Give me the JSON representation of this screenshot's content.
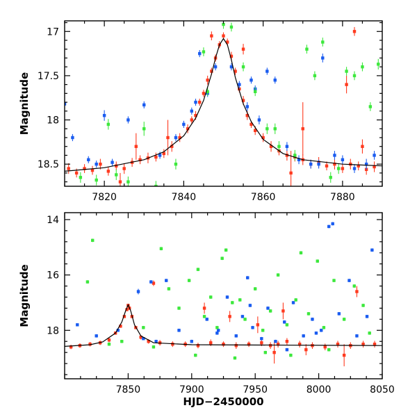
{
  "chart_data": [
    {
      "type": "scatter",
      "panel": "top",
      "title": "",
      "xlabel": "",
      "ylabel": "Magnitude",
      "xlim": [
        7810,
        7890
      ],
      "ylim": [
        18.75,
        16.88
      ],
      "y_inverted": true,
      "xticks": [
        7820,
        7840,
        7860,
        7880
      ],
      "xtick_labels": [
        "7820",
        "7840",
        "7860",
        "7880"
      ],
      "yticks": [
        17,
        17.5,
        18,
        18.5
      ],
      "ytick_labels": [
        "17",
        "17.5",
        "18",
        "18.5"
      ],
      "grid": false,
      "legend": "none",
      "model_curve": {
        "color": "#000000",
        "x": [
          7810,
          7820,
          7830,
          7835,
          7840,
          7843,
          7845,
          7847,
          7848,
          7849,
          7850,
          7851,
          7852,
          7853,
          7855,
          7857,
          7860,
          7865,
          7870,
          7880,
          7890
        ],
        "y": [
          18.58,
          18.54,
          18.45,
          18.36,
          18.18,
          17.98,
          17.78,
          17.48,
          17.3,
          17.15,
          17.08,
          17.15,
          17.32,
          17.52,
          17.82,
          18.02,
          18.22,
          18.38,
          18.45,
          18.5,
          18.52
        ]
      },
      "series": [
        {
          "color": "#ff3a1f",
          "x": [
            7811,
            7813,
            7815,
            7817,
            7819,
            7821,
            7823,
            7825,
            7827,
            7829,
            7831,
            7833,
            7835,
            7837,
            7839,
            7841,
            7842,
            7843,
            7844,
            7845,
            7846,
            7847,
            7848,
            7849,
            7850,
            7851,
            7852,
            7853,
            7854,
            7855,
            7856,
            7857,
            7858,
            7860,
            7862,
            7864,
            7866,
            7868,
            7870,
            7872,
            7874,
            7876,
            7878,
            7880,
            7882,
            7884,
            7886,
            7888,
            7836,
            7847,
            7855,
            7867,
            7881,
            7883,
            7885,
            7828,
            7824,
            7870
          ],
          "y": [
            18.55,
            18.6,
            18.55,
            18.57,
            18.5,
            18.58,
            18.52,
            18.55,
            18.48,
            18.45,
            18.43,
            18.42,
            18.38,
            18.3,
            18.2,
            18.1,
            18.0,
            17.95,
            17.8,
            17.7,
            17.55,
            17.45,
            17.3,
            17.15,
            17.05,
            17.12,
            17.28,
            17.45,
            17.65,
            17.78,
            17.95,
            18.05,
            18.12,
            18.2,
            18.3,
            18.35,
            18.4,
            18.42,
            18.45,
            18.5,
            18.48,
            18.52,
            18.5,
            18.55,
            18.5,
            18.52,
            18.56,
            18.53,
            18.2,
            17.05,
            17.2,
            18.6,
            17.6,
            17.0,
            18.3,
            18.3,
            18.7,
            18.1
          ],
          "err": [
            0.06,
            0.05,
            0.05,
            0.05,
            0.06,
            0.05,
            0.05,
            0.06,
            0.05,
            0.05,
            0.06,
            0.05,
            0.05,
            0.06,
            0.05,
            0.05,
            0.04,
            0.05,
            0.04,
            0.04,
            0.05,
            0.04,
            0.04,
            0.04,
            0.04,
            0.04,
            0.05,
            0.04,
            0.04,
            0.05,
            0.05,
            0.04,
            0.05,
            0.05,
            0.06,
            0.05,
            0.06,
            0.05,
            0.06,
            0.05,
            0.06,
            0.05,
            0.06,
            0.05,
            0.06,
            0.05,
            0.06,
            0.06,
            0.2,
            0.05,
            0.06,
            0.25,
            0.1,
            0.05,
            0.08,
            0.15,
            0.1,
            0.3
          ]
        },
        {
          "color": "#1a5cf0",
          "x": [
            7810,
            7812,
            7816,
            7818,
            7820,
            7822,
            7826,
            7830,
            7834,
            7838,
            7840,
            7842,
            7844,
            7846,
            7848,
            7852,
            7854,
            7856,
            7858,
            7859,
            7861,
            7863,
            7866,
            7869,
            7872,
            7875,
            7878,
            7880,
            7883,
            7886,
            7888,
            7843,
            7857,
            7874
          ],
          "y": [
            17.82,
            18.2,
            18.45,
            18.5,
            17.95,
            18.48,
            18.0,
            17.83,
            18.4,
            18.2,
            18.05,
            17.9,
            17.25,
            17.7,
            17.4,
            17.4,
            17.6,
            17.85,
            17.65,
            18.0,
            17.45,
            17.55,
            18.3,
            18.45,
            18.5,
            17.3,
            18.4,
            18.45,
            18.55,
            18.5,
            18.4,
            17.8,
            17.55,
            18.5
          ],
          "err": [
            0.05,
            0.04,
            0.04,
            0.04,
            0.06,
            0.04,
            0.04,
            0.04,
            0.04,
            0.04,
            0.04,
            0.04,
            0.04,
            0.04,
            0.04,
            0.04,
            0.04,
            0.05,
            0.04,
            0.05,
            0.04,
            0.04,
            0.05,
            0.05,
            0.05,
            0.05,
            0.05,
            0.05,
            0.05,
            0.06,
            0.05,
            0.04,
            0.04,
            0.05
          ]
        },
        {
          "color": "#3de83d",
          "x": [
            7814,
            7821,
            7823,
            7826,
            7830,
            7838,
            7845,
            7852,
            7855,
            7858,
            7861,
            7864,
            7868,
            7871,
            7873,
            7875,
            7877,
            7879,
            7881,
            7883,
            7885,
            7887,
            7889,
            7818,
            7833,
            7846,
            7850,
            7863
          ],
          "y": [
            18.65,
            18.05,
            18.62,
            18.7,
            18.1,
            18.5,
            17.23,
            16.95,
            17.4,
            17.68,
            18.1,
            18.3,
            18.4,
            17.2,
            17.5,
            17.12,
            18.65,
            18.55,
            17.45,
            17.5,
            17.4,
            17.85,
            17.37,
            18.68,
            18.75,
            17.68,
            16.92,
            18.1
          ],
          "err": [
            0.06,
            0.06,
            0.06,
            0.06,
            0.08,
            0.06,
            0.05,
            0.05,
            0.05,
            0.05,
            0.06,
            0.06,
            0.06,
            0.05,
            0.05,
            0.05,
            0.06,
            0.06,
            0.05,
            0.05,
            0.05,
            0.05,
            0.06,
            0.06,
            0.06,
            0.05,
            0.05,
            0.06
          ]
        }
      ]
    },
    {
      "type": "scatter",
      "panel": "bottom",
      "title": "",
      "xlabel": "HJD−2450000",
      "ylabel": "Magnitude",
      "xlim": [
        7800,
        8050
      ],
      "ylim": [
        19.75,
        13.75
      ],
      "y_inverted": true,
      "xticks": [
        7850,
        7900,
        7950,
        8000,
        8050
      ],
      "xtick_labels": [
        "7850",
        "7900",
        "7950",
        "8000",
        "8050"
      ],
      "yticks": [
        14,
        16,
        18
      ],
      "ytick_labels": [
        "14",
        "16",
        "18"
      ],
      "grid": false,
      "legend": "none",
      "model_curve": {
        "color": "#000000",
        "x": [
          7800,
          7820,
          7830,
          7840,
          7845,
          7848,
          7850,
          7852,
          7855,
          7860,
          7870,
          7900,
          8050
        ],
        "y": [
          18.58,
          18.52,
          18.42,
          18.1,
          17.7,
          17.3,
          17.08,
          17.3,
          17.8,
          18.2,
          18.45,
          18.52,
          18.55
        ]
      },
      "series": [
        {
          "color": "#ff3a1f",
          "x": [
            7805,
            7812,
            7820,
            7828,
            7835,
            7840,
            7844,
            7847,
            7849,
            7850,
            7851,
            7853,
            7856,
            7860,
            7866,
            7875,
            7885,
            7895,
            7905,
            7915,
            7925,
            7935,
            7945,
            7955,
            7962,
            7968,
            7975,
            7985,
            7995,
            8005,
            8015,
            8025,
            8035,
            8044,
            7870,
            7910,
            7930,
            7952,
            7965,
            7972,
            7990,
            8020,
            8030
          ],
          "y": [
            18.6,
            18.55,
            18.5,
            18.45,
            18.35,
            18.1,
            17.85,
            17.5,
            17.25,
            17.1,
            17.2,
            17.5,
            17.9,
            18.25,
            18.4,
            18.45,
            18.5,
            18.5,
            18.55,
            18.45,
            18.5,
            18.55,
            18.5,
            18.45,
            18.55,
            18.5,
            18.4,
            18.5,
            18.55,
            18.6,
            18.5,
            18.55,
            18.5,
            18.5,
            16.3,
            17.2,
            17.5,
            17.8,
            18.8,
            17.3,
            18.7,
            18.9,
            16.6
          ],
          "err": [
            0.08,
            0.08,
            0.08,
            0.08,
            0.08,
            0.06,
            0.06,
            0.06,
            0.06,
            0.06,
            0.06,
            0.06,
            0.06,
            0.08,
            0.08,
            0.1,
            0.1,
            0.1,
            0.1,
            0.12,
            0.1,
            0.12,
            0.1,
            0.12,
            0.12,
            0.12,
            0.12,
            0.12,
            0.12,
            0.12,
            0.12,
            0.12,
            0.12,
            0.12,
            0.1,
            0.2,
            0.2,
            0.3,
            0.4,
            0.3,
            0.2,
            0.4,
            0.2
          ]
        },
        {
          "color": "#1a5cf0",
          "x": [
            7810,
            7825,
            7842,
            7858,
            7862,
            7868,
            7880,
            7890,
            7900,
            7912,
            7920,
            7928,
            7935,
            7940,
            7944,
            7948,
            7955,
            7960,
            7966,
            7973,
            7980,
            7988,
            7995,
            8002,
            8008,
            8011,
            8016,
            8024,
            8030,
            8038,
            8042,
            7872,
            7921,
            7946,
            7975,
            7998
          ],
          "y": [
            17.8,
            18.2,
            18.0,
            16.6,
            18.3,
            16.25,
            16.2,
            18.0,
            18.4,
            17.6,
            18.1,
            16.8,
            18.2,
            17.5,
            16.1,
            17.9,
            18.3,
            17.2,
            18.4,
            17.7,
            17.0,
            18.2,
            17.6,
            18.0,
            14.25,
            14.15,
            17.4,
            16.2,
            18.2,
            17.5,
            15.1,
            18.4,
            18.0,
            17.1,
            18.7,
            18.1
          ],
          "err": [
            0.05,
            0.06,
            0.05,
            0.1,
            0.05,
            0.06,
            0.06,
            0.06,
            0.06,
            0.06,
            0.06,
            0.06,
            0.06,
            0.06,
            0.06,
            0.06,
            0.06,
            0.06,
            0.06,
            0.06,
            0.06,
            0.06,
            0.06,
            0.06,
            0.06,
            0.06,
            0.06,
            0.06,
            0.06,
            0.06,
            0.06,
            0.06,
            0.06,
            0.06,
            0.06,
            0.06
          ]
        },
        {
          "color": "#3de83d",
          "x": [
            7818,
            7822,
            7835,
            7845,
            7862,
            7876,
            7882,
            7890,
            7898,
            7905,
            7910,
            7915,
            7920,
            7924,
            7927,
            7932,
            7938,
            7942,
            7950,
            7956,
            7962,
            7968,
            7975,
            7982,
            7986,
            7992,
            7999,
            8004,
            8012,
            8020,
            8028,
            8035,
            8040,
            7870,
            7903,
            7934,
            7958,
            7978,
            8008
          ],
          "y": [
            16.25,
            14.75,
            18.5,
            18.4,
            17.9,
            15.05,
            16.5,
            17.2,
            16.2,
            15.8,
            17.5,
            16.8,
            17.9,
            15.4,
            15.1,
            17.0,
            16.9,
            17.6,
            16.5,
            18.0,
            17.3,
            16.0,
            17.8,
            16.9,
            15.2,
            17.4,
            15.5,
            17.9,
            16.2,
            17.6,
            16.4,
            17.1,
            18.1,
            18.6,
            18.9,
            19.0,
            18.8,
            18.9,
            18.7
          ],
          "err": [
            0.06,
            0.06,
            0.06,
            0.06,
            0.06,
            0.06,
            0.06,
            0.06,
            0.06,
            0.06,
            0.06,
            0.06,
            0.06,
            0.06,
            0.06,
            0.06,
            0.06,
            0.06,
            0.06,
            0.06,
            0.06,
            0.06,
            0.06,
            0.06,
            0.06,
            0.06,
            0.06,
            0.06,
            0.06,
            0.06,
            0.06,
            0.06,
            0.06,
            0.06,
            0.06,
            0.06,
            0.06,
            0.06,
            0.06
          ]
        }
      ]
    }
  ]
}
